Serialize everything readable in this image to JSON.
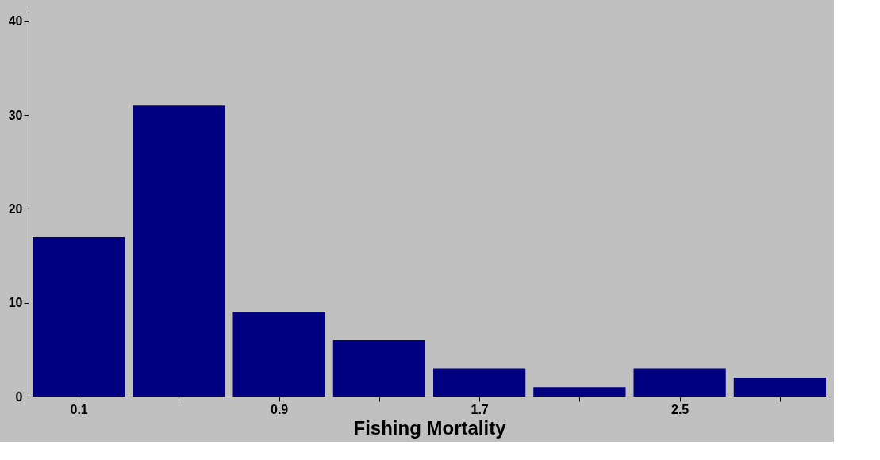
{
  "chart_data": {
    "type": "bar",
    "xlabel": "Fishing Mortality",
    "x": [
      0.1,
      0.5,
      0.9,
      1.3,
      1.7,
      2.1,
      2.5,
      2.9
    ],
    "values": [
      17,
      31,
      9,
      6,
      3,
      1,
      3,
      2
    ],
    "color": "#000080",
    "xlim": [
      -0.1,
      3.1
    ],
    "xticks": [
      0.1,
      {
        "value": 0.5,
        "label": null
      },
      0.9,
      {
        "value": 1.3,
        "label": null
      },
      1.7,
      {
        "value": 2.1,
        "label": null
      },
      2.5,
      {
        "value": 2.9,
        "label": null
      }
    ],
    "ylim": [
      0,
      41
    ],
    "yticks": [
      0,
      10,
      20,
      30,
      40
    ],
    "grid": false
  }
}
